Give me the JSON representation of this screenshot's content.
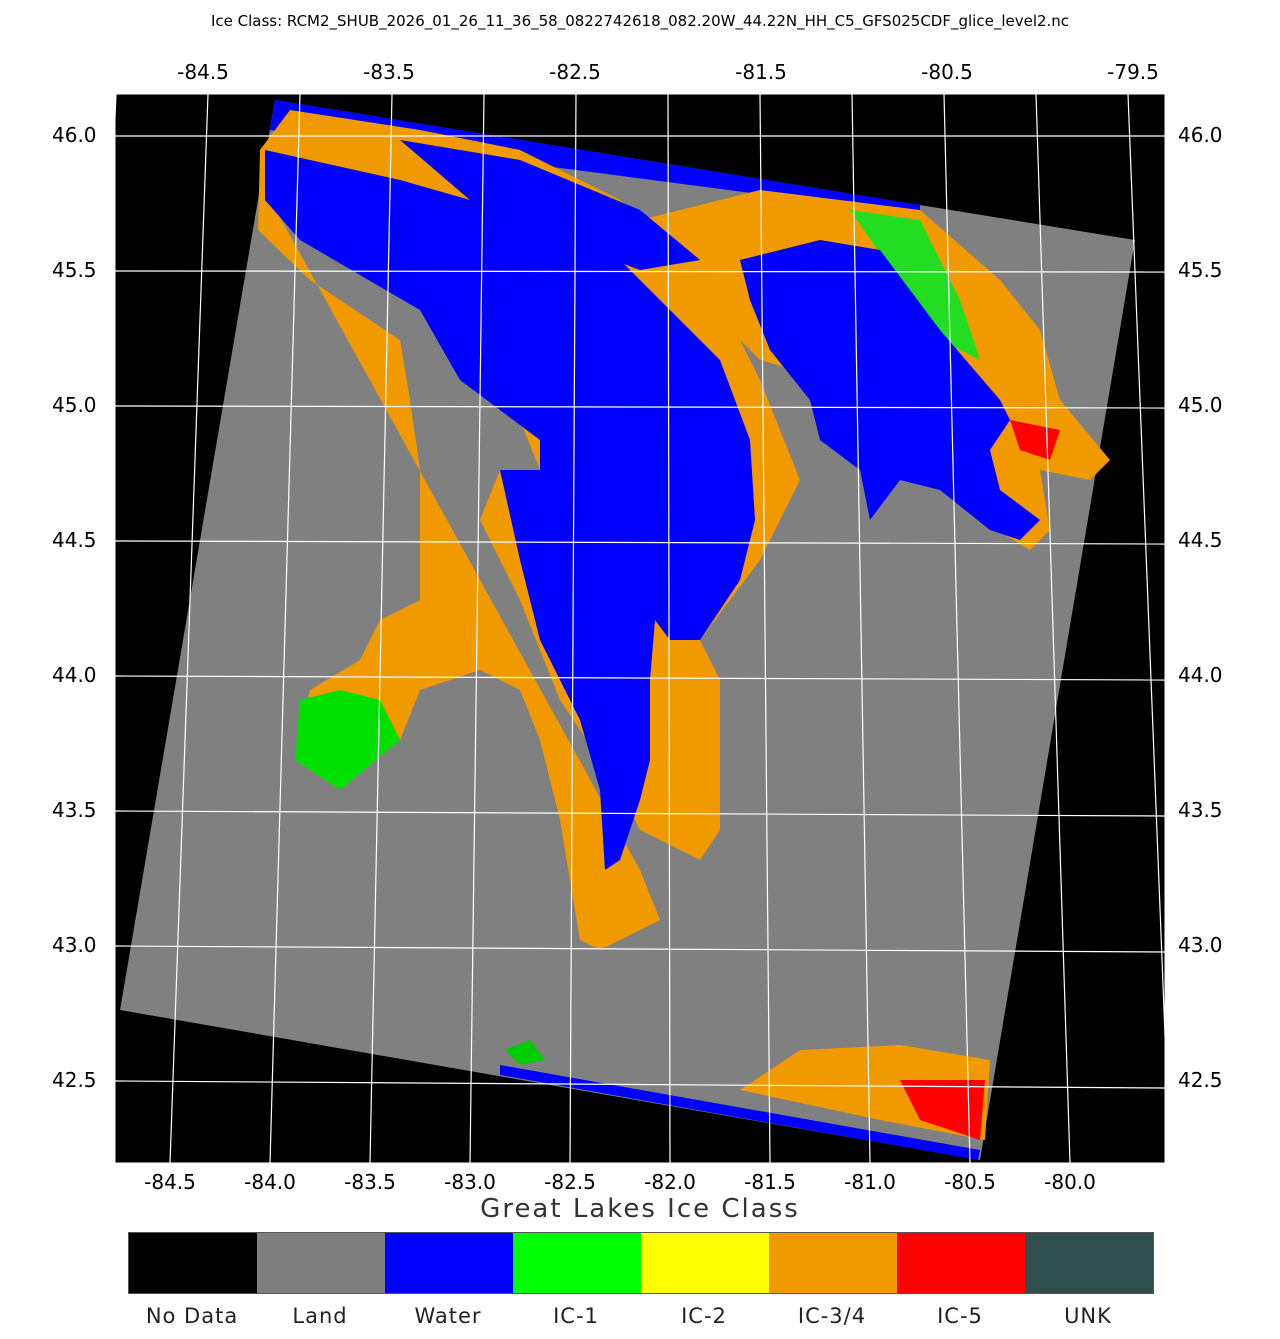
{
  "title": "Ice Class: RCM2_SHUB_2026_01_26_11_36_58_0822742618_082.20W_44.22N_HH_C5_GFS025CDF_glice_level2.nc",
  "top_lon_ticks": [
    "-84.5",
    "-83.5",
    "-82.5",
    "-81.5",
    "-80.5",
    "-79.5"
  ],
  "bottom_lon_ticks": [
    "-84.5",
    "-84.0",
    "-83.5",
    "-83.0",
    "-82.5",
    "-82.0",
    "-81.5",
    "-81.0",
    "-80.5",
    "-80.0"
  ],
  "lat_ticks": [
    "46.0",
    "45.5",
    "45.0",
    "44.5",
    "44.0",
    "43.5",
    "43.0",
    "42.5"
  ],
  "xlabel": "Great Lakes Ice Class",
  "legend": [
    {
      "label": "No Data",
      "color": "#000000"
    },
    {
      "label": "Land",
      "color": "#7f7f7f"
    },
    {
      "label": "Water",
      "color": "#0000ff"
    },
    {
      "label": "IC-1",
      "color": "#00ff00"
    },
    {
      "label": "IC-2",
      "color": "#ffff00"
    },
    {
      "label": "IC-3/4",
      "color": "#f09a00"
    },
    {
      "label": "IC-5",
      "color": "#ff0000"
    },
    {
      "label": "UNK",
      "color": "#2f4f4f"
    }
  ]
}
